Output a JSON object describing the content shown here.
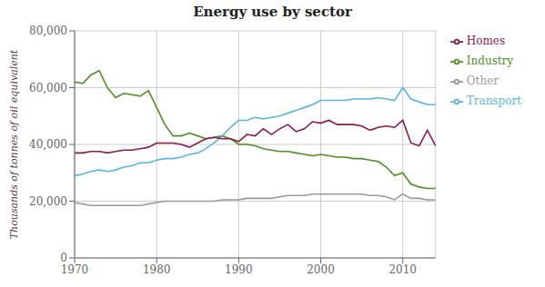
{
  "chart_data": {
    "type": "line",
    "title": "Energy use by sector",
    "y_label": "Thousands of tonnes of oil equivalent",
    "x": [
      1970,
      1971,
      1972,
      1973,
      1974,
      1975,
      1976,
      1977,
      1978,
      1979,
      1980,
      1981,
      1982,
      1983,
      1984,
      1985,
      1986,
      1987,
      1988,
      1989,
      1990,
      1991,
      1992,
      1993,
      1994,
      1995,
      1996,
      1997,
      1998,
      1999,
      2000,
      2001,
      2002,
      2003,
      2004,
      2005,
      2006,
      2007,
      2008,
      2009,
      2010,
      2011,
      2012,
      2013,
      2014
    ],
    "series": [
      {
        "name": "Industry",
        "color": "#4d8f27",
        "values": [
          62000,
          61500,
          64500,
          66000,
          60000,
          56500,
          58000,
          57500,
          57000,
          59000,
          53000,
          47000,
          43000,
          43000,
          44000,
          43000,
          42000,
          42500,
          43000,
          42000,
          40000,
          40000,
          39500,
          38500,
          38000,
          37500,
          37500,
          37000,
          36500,
          36000,
          36500,
          36000,
          35500,
          35500,
          35000,
          35000,
          34500,
          34000,
          32000,
          29000,
          30000,
          26000,
          25000,
          24500,
          24500
        ]
      },
      {
        "name": "Transport",
        "color": "#5ab4e5",
        "values": [
          29000,
          29500,
          30500,
          31000,
          30500,
          31000,
          32000,
          32500,
          33500,
          33500,
          34500,
          35000,
          35000,
          35500,
          36500,
          37000,
          38500,
          40500,
          43000,
          46000,
          48500,
          48500,
          49500,
          49000,
          49500,
          50000,
          51000,
          52000,
          53000,
          54000,
          55500,
          55500,
          55500,
          55500,
          56000,
          56000,
          56000,
          56500,
          56000,
          55500,
          60000,
          56000,
          55000,
          54000,
          54000
        ]
      },
      {
        "name": "Homes",
        "color": "#8b1a4a",
        "values": [
          37000,
          37000,
          37500,
          37500,
          37000,
          37500,
          38000,
          38000,
          38500,
          39000,
          40500,
          40500,
          40500,
          40000,
          39000,
          40500,
          42000,
          42500,
          42000,
          42000,
          41000,
          43500,
          43000,
          45500,
          43500,
          45500,
          47000,
          44500,
          45500,
          48000,
          47500,
          48500,
          47000,
          47000,
          47000,
          46500,
          45000,
          46000,
          46500,
          46000,
          48500,
          40500,
          39500,
          45000,
          39500
        ]
      },
      {
        "name": "Other",
        "color": "#999999",
        "values": [
          19500,
          19000,
          18500,
          18500,
          18500,
          18500,
          18500,
          18500,
          18500,
          19000,
          19500,
          20000,
          20000,
          20000,
          20000,
          20000,
          20000,
          20000,
          20500,
          20500,
          20500,
          21000,
          21000,
          21000,
          21000,
          21500,
          22000,
          22000,
          22000,
          22500,
          22500,
          22500,
          22500,
          22500,
          22500,
          22500,
          22000,
          22000,
          21500,
          20500,
          22500,
          21000,
          21000,
          20500,
          20500
        ]
      }
    ],
    "xlim": [
      1970,
      2014
    ],
    "xticks": [
      1970,
      1980,
      1990,
      2000,
      2010
    ],
    "ylim": [
      0,
      80000
    ],
    "yticks": [
      0,
      {
        "value": 20000,
        "label": "20,000"
      },
      {
        "value": 40000,
        "label": "40,000"
      },
      {
        "value": 60000,
        "label": "60,000"
      },
      {
        "value": 80000,
        "label": "80,000"
      }
    ],
    "grid": true,
    "legend": "right"
  }
}
